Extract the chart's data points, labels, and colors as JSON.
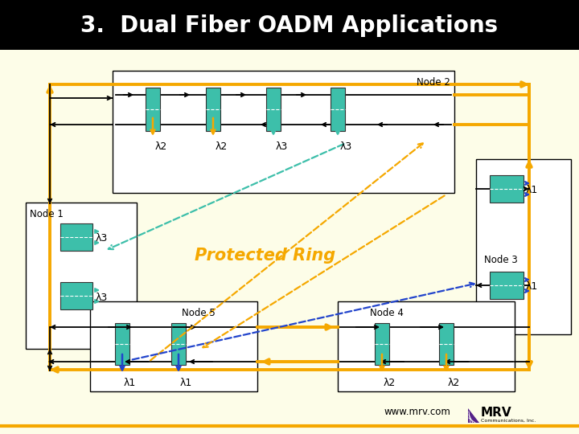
{
  "title": "3.  Dual Fiber OADM Applications",
  "bg_color": "#fdfde8",
  "teal": "#3dbfaa",
  "orange": "#f5a800",
  "blue": "#2244cc",
  "node2_label": "Node 2",
  "node1_label": "Node 1",
  "node3_label": "Node 3",
  "node4_label": "Node 4",
  "node5_label": "Node 5",
  "lam1": "λ1",
  "lam2": "λ2",
  "lam3": "λ3",
  "website": "www.mrv.com",
  "ring_lw": 2.8,
  "bus_lw": 1.3,
  "drop_lw": 1.8,
  "diag_lw": 1.6
}
